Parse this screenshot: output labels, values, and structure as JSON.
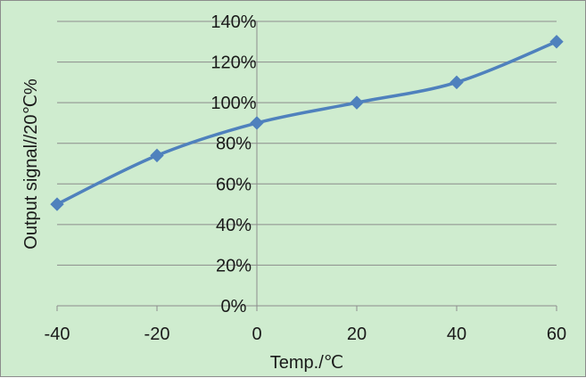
{
  "chart_data": {
    "type": "line",
    "title": "",
    "xlabel": "Temp./℃",
    "ylabel": "Output signal//20℃%",
    "x": [
      -40,
      -20,
      0,
      20,
      40,
      60
    ],
    "series": [
      {
        "values": [
          50,
          74,
          90,
          100,
          110,
          130
        ],
        "color": "#4f81bd",
        "marker": "diamond"
      }
    ],
    "xlim": [
      -40,
      60
    ],
    "ylim": [
      0,
      140
    ],
    "xticks": [
      -40,
      -20,
      0,
      20,
      40,
      60
    ],
    "xtick_labels": [
      "-40",
      "-20",
      "0",
      "20",
      "40",
      "60"
    ],
    "yticks": [
      0,
      20,
      40,
      60,
      80,
      100,
      120,
      140
    ],
    "ytick_labels": [
      "0%",
      "20%",
      "40%",
      "60%",
      "80%",
      "100%",
      "120%",
      "140%"
    ],
    "grid": {
      "y": true,
      "x": false
    },
    "legend": "none",
    "colors": {
      "background": "#cfeccf",
      "gridline": "#8c8c8c",
      "line": "#4f81bd"
    }
  }
}
